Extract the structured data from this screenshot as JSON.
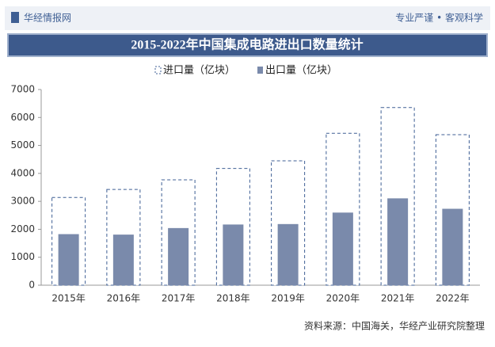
{
  "header": {
    "brand": "华经情报网",
    "slogan": "专业严谨 • 客观科学"
  },
  "source": "资料来源：中国海关，华经产业研究院整理",
  "chart_data": {
    "type": "bar",
    "title": "2015-2022年中国集成电路进出口数量统计",
    "categories": [
      "2015年",
      "2016年",
      "2017年",
      "2018年",
      "2019年",
      "2020年",
      "2021年",
      "2022年"
    ],
    "series": [
      {
        "name": "进口量（亿块）",
        "color": "#3f5f94",
        "values": [
          3140,
          3425,
          3770,
          4176,
          4451,
          5435,
          6355,
          5384
        ]
      },
      {
        "name": "出口量（亿块）",
        "color": "#7a8aab",
        "values": [
          1827,
          1810,
          2044,
          2171,
          2187,
          2598,
          3107,
          2734
        ]
      }
    ],
    "ylim": [
      0,
      7000
    ],
    "yticks": [
      0,
      1000,
      2000,
      3000,
      4000,
      5000,
      6000,
      7000
    ],
    "grid": false,
    "legend": "top"
  }
}
